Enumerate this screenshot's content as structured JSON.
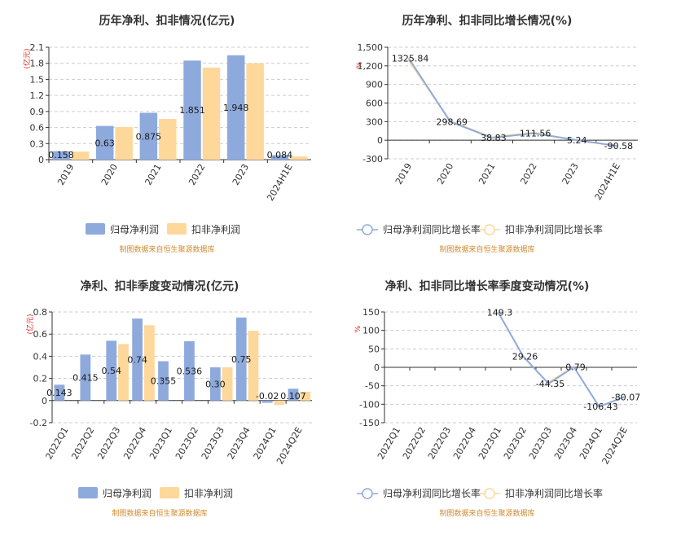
{
  "colors": {
    "primary": "#8eaadc",
    "secondary": "#fdd89a",
    "unit_text": "#e02020",
    "source_text": "#d08a30"
  },
  "chart_data": [
    {
      "type": "bar",
      "title": "历年净利、扣非情况(亿元)",
      "ylabel": "(亿元)",
      "categories": [
        "2019",
        "2020",
        "2021",
        "2022",
        "2023",
        "2024H1E"
      ],
      "series": [
        {
          "name": "归母净利润",
          "values": [
            0.158,
            0.63,
            0.875,
            1.851,
            1.948,
            0.084
          ]
        },
        {
          "name": "扣非净利润",
          "values": [
            0.15,
            0.61,
            0.76,
            1.72,
            1.8,
            0.06
          ]
        }
      ],
      "data_labels": [
        "0.158",
        "0.63",
        "0.875",
        "1.851",
        "1.948",
        "0.084"
      ],
      "ylim": [
        0,
        2.1
      ],
      "yticks": [
        "0",
        "0.3",
        "0.6",
        "0.9",
        "1.2",
        "1.5",
        "1.8",
        "2.1"
      ],
      "grid": true,
      "legend_position": "bottom",
      "source": "制图数据来自恒生聚源数据库"
    },
    {
      "type": "line",
      "title": "历年净利、扣非同比增长情况(%)",
      "ylabel": "%",
      "categories": [
        "2019",
        "2020",
        "2021",
        "2022",
        "2023",
        "2024H1E"
      ],
      "series": [
        {
          "name": "归母净利润同比增长率",
          "values": [
            1325.84,
            298.69,
            38.83,
            111.56,
            5.24,
            -90.58
          ]
        },
        {
          "name": "扣非净利润同比增长率",
          "values": [
            1290,
            310,
            45,
            125,
            3,
            -95
          ]
        }
      ],
      "data_labels": [
        "1325.84",
        "298.69",
        "38.83",
        "111.56",
        "5.24",
        "-90.58"
      ],
      "ylim": [
        -300,
        1500
      ],
      "yticks": [
        "-300",
        "0",
        "300",
        "600",
        "900",
        "1,200",
        "1,500"
      ],
      "grid": true,
      "legend_position": "bottom",
      "source": "制图数据来自恒生聚源数据库"
    },
    {
      "type": "bar",
      "title": "净利、扣非季度变动情况(亿元)",
      "ylabel": "(亿元)",
      "categories": [
        "2022Q1",
        "2022Q2",
        "2022Q3",
        "2022Q4",
        "2023Q1",
        "2023Q2",
        "2023Q3",
        "2023Q4",
        "2024Q1",
        "2024Q2E"
      ],
      "series": [
        {
          "name": "归母净利润",
          "values": [
            0.143,
            0.415,
            0.54,
            0.74,
            0.355,
            0.536,
            0.3,
            0.75,
            -0.02,
            0.107
          ]
        },
        {
          "name": "扣非净利润",
          "values": [
            0,
            0,
            0.51,
            0.68,
            0,
            0,
            0.3,
            0.63,
            -0.04,
            0.08
          ]
        }
      ],
      "data_labels": [
        "0.143",
        "0.415",
        "0.54",
        "0.74",
        "0.355",
        "0.536",
        "0.30",
        "0.75",
        "-0.02",
        "0.107"
      ],
      "ylim": [
        -0.2,
        0.8
      ],
      "yticks": [
        "-0.2",
        "0",
        "0.2",
        "0.4",
        "0.6",
        "0.8"
      ],
      "grid": true,
      "legend_position": "bottom",
      "source": "制图数据来自恒生聚源数据库"
    },
    {
      "type": "line",
      "title": "净利、扣非同比增长率季度变动情况(%)",
      "ylabel": "%",
      "categories": [
        "2022Q1",
        "2022Q2",
        "2022Q3",
        "2022Q4",
        "2023Q1",
        "2023Q2",
        "2023Q3",
        "2023Q4",
        "2024Q1",
        "2024Q2E"
      ],
      "series": [
        {
          "name": "归母净利润同比增长率",
          "values": [
            null,
            null,
            null,
            null,
            149.3,
            29.26,
            -44.35,
            0.79,
            -106.43,
            -80.07
          ]
        },
        {
          "name": "扣非净利润同比增长率",
          "values": [
            null,
            null,
            null,
            null,
            null,
            null,
            -40.5,
            0.79,
            null,
            -80.07
          ]
        }
      ],
      "data_labels": [
        null,
        null,
        null,
        null,
        "149.3",
        "29.26",
        "-44.35",
        "0.79",
        "-106.43",
        "-80.07"
      ],
      "ylim": [
        -150,
        150
      ],
      "yticks": [
        "-150",
        "-100",
        "-50",
        "0",
        "50",
        "100",
        "150"
      ],
      "grid": true,
      "legend_position": "bottom",
      "source": "制图数据来自恒生聚源数据库"
    }
  ]
}
